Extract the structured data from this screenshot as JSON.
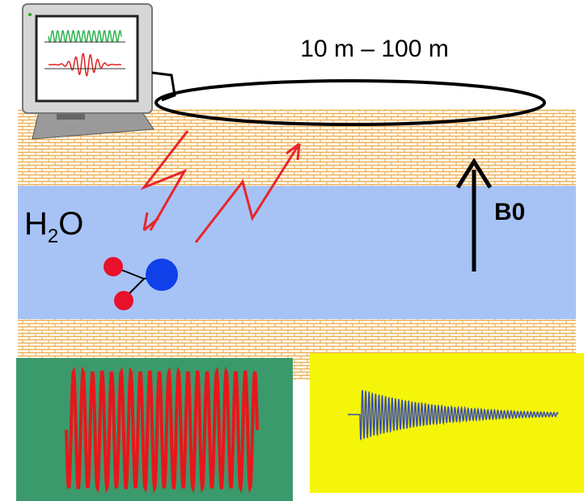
{
  "loop_label": "10 m – 100 m",
  "water_label": {
    "main": "H",
    "subscript": "2",
    "tail": "O"
  },
  "field_label": "B0"
}
